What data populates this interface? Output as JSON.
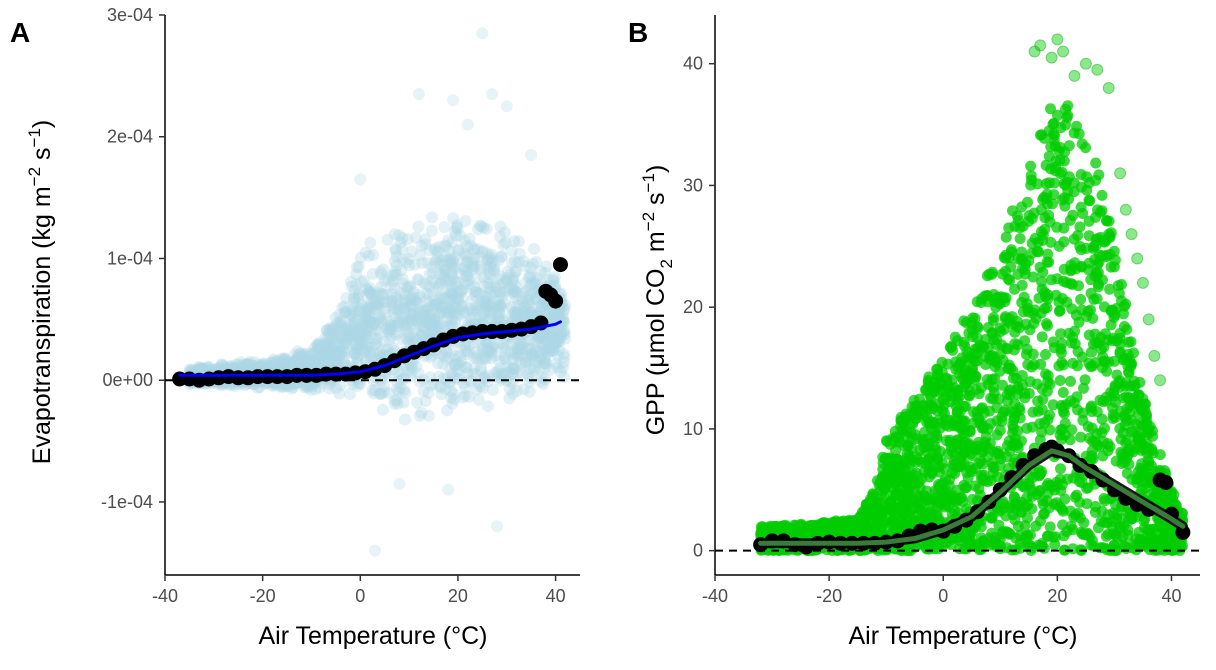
{
  "chart_data": [
    {
      "panel_label": "A",
      "type": "scatter",
      "xlabel": "Air Temperature (°C)",
      "ylabel": "Evapotranspiration (kg m−2 s−1)",
      "ylabel_parts": {
        "main": "Evapotranspiration (kg m",
        "sup1": "−2",
        "mid": " s",
        "sup2": "−1",
        "end": ")"
      },
      "xlim": [
        -40,
        45
      ],
      "ylim": [
        -0.00016,
        0.0003
      ],
      "x_ticks": [
        -40,
        -20,
        0,
        20,
        40
      ],
      "x_tick_labels": [
        "-40",
        "-20",
        "0",
        "20",
        "40"
      ],
      "y_ticks": [
        -0.0001,
        0,
        0.0001,
        0.0002,
        0.0003
      ],
      "y_tick_labels": [
        "-1e-04",
        "0e+00",
        "1e-04",
        "2e-04",
        "3e-04"
      ],
      "grid": false,
      "reference_line": {
        "y": 0,
        "style": "dashed",
        "color": "#000000"
      },
      "colors": {
        "raw_points": "#add8e6",
        "binned_means": "#000000",
        "smooth": "#0000ff"
      },
      "raw_cloud": {
        "x": [
          -35,
          -25,
          -15,
          -10,
          -5,
          0,
          5,
          10,
          15,
          20,
          25,
          30,
          35,
          40,
          42
        ],
        "y_low": [
          -4e-06,
          -6e-06,
          -8e-06,
          -1e-05,
          -1.5e-05,
          -2e-05,
          -3e-05,
          -3.5e-05,
          -4e-05,
          -3e-05,
          -3e-05,
          -2e-05,
          -1.5e-05,
          -1e-05,
          0
        ],
        "y_high": [
          1.2e-05,
          1.5e-05,
          2e-05,
          3e-05,
          6e-05,
          0.00011,
          0.000125,
          0.00013,
          0.00014,
          0.00014,
          0.000145,
          0.00013,
          0.000115,
          9.5e-05,
          7e-05
        ]
      },
      "raw_outliers": [
        {
          "x": 12,
          "y": 0.000235
        },
        {
          "x": 19,
          "y": 0.00023
        },
        {
          "x": 22,
          "y": 0.00021
        },
        {
          "x": 25,
          "y": 0.000285
        },
        {
          "x": 27,
          "y": 0.000235
        },
        {
          "x": 30,
          "y": 0.000225
        },
        {
          "x": 8,
          "y": -8.5e-05
        },
        {
          "x": 3,
          "y": -0.00014
        },
        {
          "x": 28,
          "y": -0.00012
        },
        {
          "x": 18,
          "y": -9e-05
        },
        {
          "x": 35,
          "y": 0.000185
        },
        {
          "x": 0,
          "y": 0.000165
        }
      ],
      "binned_means": {
        "x": [
          -37,
          -35,
          -33,
          -31,
          -29,
          -27,
          -25,
          -23,
          -21,
          -19,
          -17,
          -15,
          -13,
          -11,
          -9,
          -7,
          -5,
          -3,
          -1,
          1,
          3,
          5,
          7,
          9,
          11,
          13,
          15,
          17,
          19,
          21,
          23,
          25,
          27,
          29,
          31,
          33,
          35,
          37,
          38,
          39,
          40,
          41
        ],
        "y": [
          1e-06,
          1e-06,
          0,
          1e-06,
          2e-06,
          3e-06,
          2e-06,
          2e-06,
          3e-06,
          3e-06,
          3e-06,
          3e-06,
          4e-06,
          4e-06,
          4e-06,
          5e-06,
          5e-06,
          5e-06,
          6e-06,
          7e-06,
          9e-06,
          1.2e-05,
          1.6e-05,
          2e-05,
          2.3e-05,
          2.6e-05,
          2.9e-05,
          3.3e-05,
          3.6e-05,
          3.8e-05,
          3.9e-05,
          4e-05,
          4e-05,
          4e-05,
          4.1e-05,
          4.2e-05,
          4.4e-05,
          4.7e-05,
          7.3e-05,
          7e-05,
          6.5e-05,
          9.5e-05
        ]
      },
      "smooth_line": {
        "x": [
          -37,
          -30,
          -20,
          -10,
          -5,
          0,
          5,
          10,
          15,
          20,
          25,
          30,
          35,
          40,
          41
        ],
        "y": [
          4e-06,
          4e-06,
          4e-06,
          4e-06,
          5e-06,
          7e-06,
          1.2e-05,
          2e-05,
          2.8e-05,
          3.5e-05,
          3.8e-05,
          4e-05,
          4.2e-05,
          4.6e-05,
          4.8e-05
        ]
      }
    },
    {
      "panel_label": "B",
      "type": "scatter",
      "xlabel": "Air Temperature (°C)",
      "ylabel": "GPP (μmol CO2 m−2 s−1)",
      "ylabel_parts": {
        "main": "GPP (μmol CO",
        "sub": "2",
        "mid1": " m",
        "sup1": "−2",
        "mid2": " s",
        "sup2": "−1",
        "end": ")"
      },
      "xlim": [
        -40,
        45
      ],
      "ylim": [
        -2,
        44
      ],
      "x_ticks": [
        -40,
        -20,
        0,
        20,
        40
      ],
      "x_tick_labels": [
        "-40",
        "-20",
        "0",
        "20",
        "40"
      ],
      "y_ticks": [
        0,
        10,
        20,
        30,
        40
      ],
      "y_tick_labels": [
        "0",
        "10",
        "20",
        "30",
        "40"
      ],
      "grid": false,
      "reference_line": {
        "y": 0,
        "style": "dashed",
        "color": "#000000"
      },
      "colors": {
        "raw_points": "#00cc00",
        "binned_means": "#000000",
        "smooth": "#3a7a3a"
      },
      "raw_cloud": {
        "x": [
          -32,
          -25,
          -15,
          -12,
          -10,
          -5,
          0,
          5,
          10,
          15,
          18,
          20,
          22,
          25,
          28,
          30,
          33,
          35,
          38,
          40,
          42
        ],
        "y_low": [
          0,
          0,
          0,
          0,
          0,
          0,
          0,
          0,
          0,
          0,
          0,
          0,
          0,
          0,
          0,
          0,
          0,
          0,
          0,
          0,
          0
        ],
        "y_high": [
          2,
          2.2,
          2.6,
          5,
          9,
          13,
          16,
          20,
          25,
          32,
          36,
          38,
          37,
          35,
          30,
          25,
          18,
          13,
          8,
          5,
          3
        ]
      },
      "raw_outliers": [
        {
          "x": 16,
          "y": 41
        },
        {
          "x": 17,
          "y": 41.5
        },
        {
          "x": 19,
          "y": 40.5
        },
        {
          "x": 20,
          "y": 42
        },
        {
          "x": 21,
          "y": 41
        },
        {
          "x": 23,
          "y": 39
        },
        {
          "x": 25,
          "y": 40
        },
        {
          "x": 27,
          "y": 39.5
        },
        {
          "x": 29,
          "y": 38
        },
        {
          "x": 31,
          "y": 31
        },
        {
          "x": 33,
          "y": 26
        },
        {
          "x": 35,
          "y": 22
        },
        {
          "x": 36,
          "y": 19
        },
        {
          "x": 37,
          "y": 16
        },
        {
          "x": 38,
          "y": 14
        },
        {
          "x": 34,
          "y": 24
        },
        {
          "x": 32,
          "y": 28
        }
      ],
      "binned_means": {
        "x": [
          -32,
          -30,
          -28,
          -26,
          -24,
          -22,
          -20,
          -18,
          -16,
          -14,
          -12,
          -10,
          -8,
          -6,
          -4,
          -2,
          0,
          2,
          4,
          6,
          8,
          10,
          12,
          14,
          16,
          18,
          19,
          20,
          22,
          24,
          26,
          28,
          30,
          32,
          34,
          36,
          38,
          39,
          40,
          42
        ],
        "y": [
          0.5,
          0.8,
          0.8,
          0.5,
          0.3,
          0.6,
          0.7,
          0.6,
          0.6,
          0.6,
          0.6,
          0.7,
          0.8,
          1.2,
          1.6,
          1.7,
          1.6,
          2.0,
          2.5,
          3.2,
          4.0,
          5.0,
          6.0,
          7.0,
          7.8,
          8.3,
          8.5,
          8.2,
          7.8,
          7.0,
          6.5,
          5.8,
          5.0,
          4.3,
          3.8,
          3.4,
          5.8,
          5.6,
          3.0,
          1.5
        ]
      },
      "smooth_line": {
        "x": [
          -32,
          -25,
          -20,
          -15,
          -10,
          -5,
          0,
          5,
          10,
          15,
          19,
          22,
          25,
          30,
          35,
          40,
          42
        ],
        "y": [
          0.6,
          0.6,
          0.6,
          0.6,
          0.7,
          1.0,
          1.7,
          2.8,
          4.8,
          7.0,
          8.2,
          7.8,
          6.8,
          5.4,
          4.0,
          2.6,
          2.0
        ]
      }
    }
  ]
}
